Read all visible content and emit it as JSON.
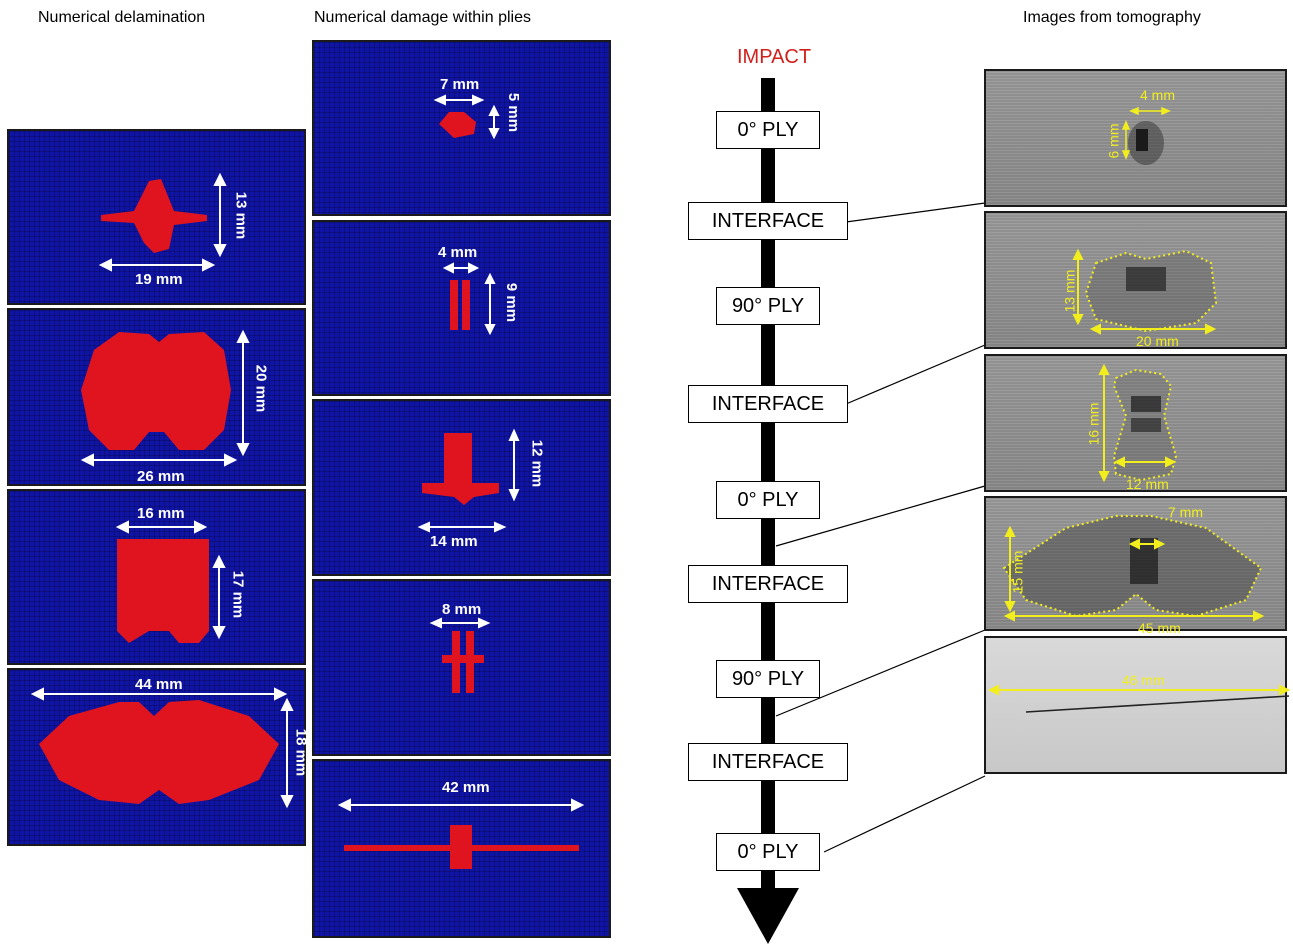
{
  "titles": {
    "delamination": "Numerical delamination",
    "plies": "Numerical damage within plies",
    "tomography": "Images from tomography"
  },
  "impact_label": "IMPACT",
  "colors": {
    "field": "#0f14a4",
    "damage": "#e0141e",
    "dimension_numeric": "#ffffff",
    "dimension_tomo": "#f2ee1e",
    "impact": "#d1201c"
  },
  "delamination_panels": [
    {
      "width": "19 mm",
      "height": "13 mm"
    },
    {
      "width": "26 mm",
      "height": "20 mm"
    },
    {
      "width": "16 mm",
      "height": "17 mm"
    },
    {
      "width": "44 mm",
      "height": "18 mm"
    }
  ],
  "ply_panels": [
    {
      "width": "7 mm",
      "height": "5 mm"
    },
    {
      "width": "4 mm",
      "height": "9 mm"
    },
    {
      "width": "14 mm",
      "height": "12 mm"
    },
    {
      "width": "8 mm"
    },
    {
      "width": "42 mm"
    }
  ],
  "stack": [
    "0° PLY",
    "INTERFACE",
    "90° PLY",
    "INTERFACE",
    "0° PLY",
    "INTERFACE",
    "90° PLY",
    "INTERFACE",
    "0° PLY"
  ],
  "tomography_panels": [
    {
      "width": "4 mm",
      "height": "6 mm"
    },
    {
      "width": "20 mm",
      "height": "13 mm"
    },
    {
      "width": "12 mm",
      "height": "16 mm"
    },
    {
      "width": "45 mm",
      "height": "15 mm",
      "inner": "7 mm"
    },
    {
      "width": "46 mm"
    }
  ]
}
